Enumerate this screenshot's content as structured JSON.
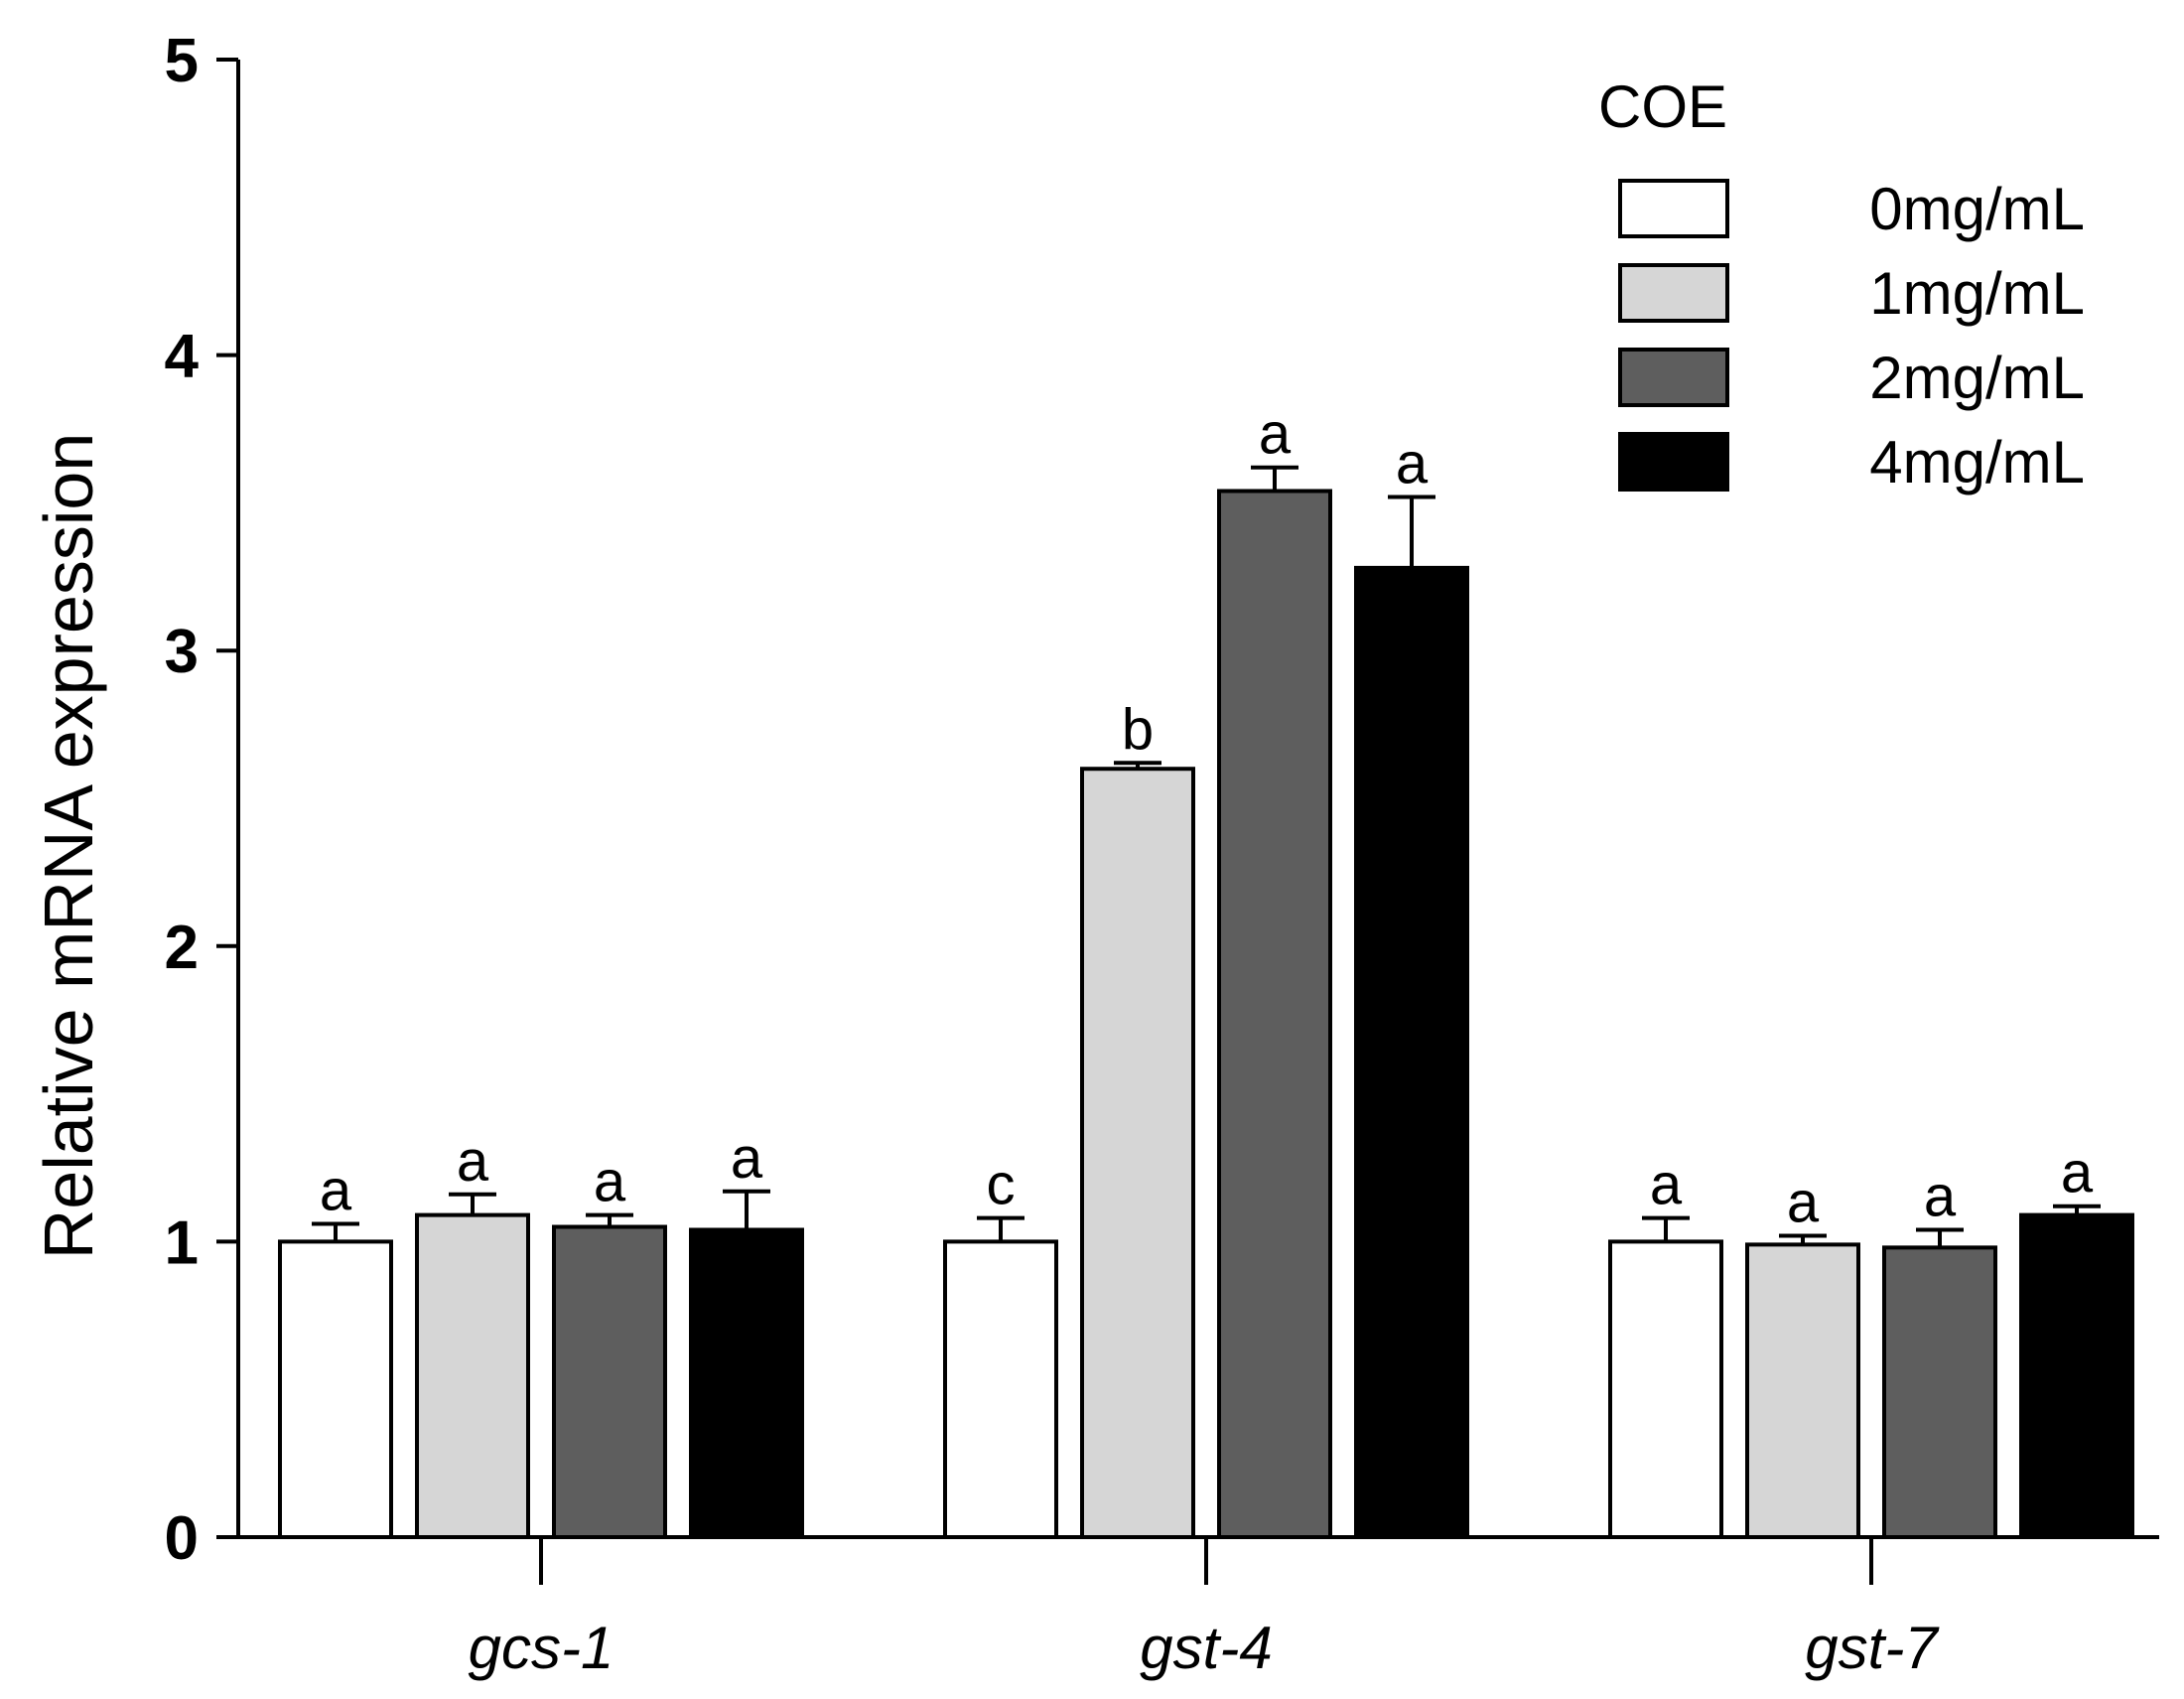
{
  "chart_data": {
    "type": "bar",
    "title": "",
    "xlabel": "",
    "ylabel": "Relative mRNA expression",
    "ylim": [
      0,
      5
    ],
    "yticks": [
      0,
      1,
      2,
      3,
      4,
      5
    ],
    "categories": [
      "gcs-1",
      "gst-4",
      "gst-7"
    ],
    "legend_title": "COE",
    "legend_position": "top-right",
    "series": [
      {
        "name": "0mg/mL",
        "color": "#ffffff",
        "values": [
          1.0,
          1.0,
          1.0
        ],
        "errors": [
          0.06,
          0.08,
          0.08
        ],
        "labels": [
          "a",
          "c",
          "a"
        ]
      },
      {
        "name": "1mg/mL",
        "color": "#d6d6d6",
        "values": [
          1.09,
          2.6,
          0.99
        ],
        "errors": [
          0.07,
          0.02,
          0.03
        ],
        "labels": [
          "a",
          "b",
          "a"
        ]
      },
      {
        "name": "2mg/mL",
        "color": "#5e5e5e",
        "values": [
          1.05,
          3.54,
          0.98
        ],
        "errors": [
          0.04,
          0.08,
          0.06
        ],
        "labels": [
          "a",
          "a",
          "a"
        ]
      },
      {
        "name": "4mg/mL",
        "color": "#000000",
        "values": [
          1.04,
          3.28,
          1.09
        ],
        "errors": [
          0.13,
          0.24,
          0.03
        ],
        "labels": [
          "a",
          "a",
          "a"
        ]
      }
    ]
  }
}
